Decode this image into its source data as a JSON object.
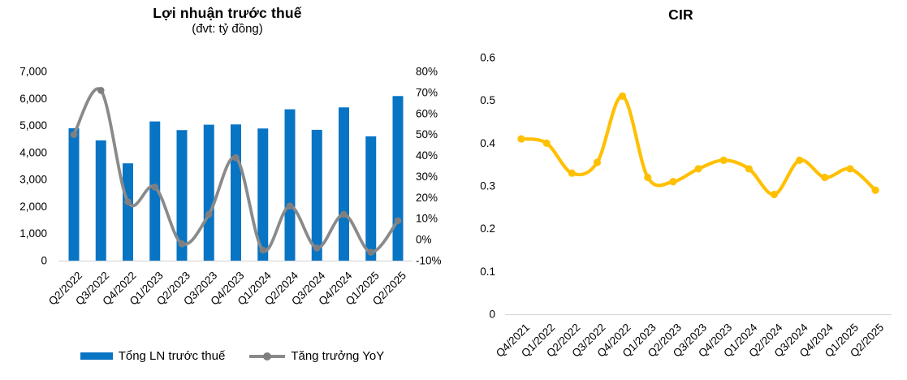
{
  "page": {
    "background": "#ffffff"
  },
  "chart_data": [
    {
      "type": "combo-bar-line",
      "title": "Lợi nhuận trước thuế",
      "subtitle": "(đvt: tỷ đồng)",
      "categories": [
        "Q2/2022",
        "Q3/2022",
        "Q4/2022",
        "Q1/2023",
        "Q2/2023",
        "Q3/2023",
        "Q4/2023",
        "Q1/2024",
        "Q2/2024",
        "Q3/2024",
        "Q4/2024",
        "Q1/2025",
        "Q2/2025"
      ],
      "series": [
        {
          "name": "Tổng LN trước thuế",
          "renderer": "bar",
          "axis": "left",
          "color": "#0874C4",
          "values": [
            4900,
            4450,
            3600,
            5150,
            4830,
            5030,
            5040,
            4890,
            5600,
            4840,
            5670,
            4600,
            6090
          ]
        },
        {
          "name": "Tăng trưởng YoY",
          "renderer": "line",
          "axis": "right",
          "color": "#8A8A8A",
          "marker_color": "#7F7F7F",
          "values_pct": [
            50,
            71,
            18,
            25,
            -2,
            12,
            39,
            -5,
            16,
            -4,
            12,
            -6,
            9
          ]
        }
      ],
      "left_axis": {
        "label_unit": "tỷ đồng",
        "min": 0,
        "max": 7000,
        "step": 1000,
        "ticks": [
          "7,000",
          "6,000",
          "5,000",
          "4,000",
          "3,000",
          "2,000",
          "1,000",
          "0"
        ]
      },
      "right_axis": {
        "label_unit": "%",
        "min": -10,
        "max": 80,
        "step": 10,
        "ticks": [
          "80%",
          "70%",
          "60%",
          "50%",
          "40%",
          "30%",
          "20%",
          "10%",
          "0%",
          "-10%"
        ]
      },
      "grid": "off",
      "legend_position": "bottom",
      "baseline_color": "#D9D9D9"
    },
    {
      "type": "line",
      "title": "CIR",
      "categories": [
        "Q4/2021",
        "Q1/2022",
        "Q2/2022",
        "Q3/2022",
        "Q4/2022",
        "Q1/2023",
        "Q2/2023",
        "Q3/2023",
        "Q4/2023",
        "Q1/2024",
        "Q2/2024",
        "Q3/2024",
        "Q4/2024",
        "Q1/2025",
        "Q2/2025"
      ],
      "series": [
        {
          "name": "CIR",
          "renderer": "line",
          "color": "#FFC000",
          "marker_color": "#FFC000",
          "values": [
            0.41,
            0.4,
            0.33,
            0.355,
            0.51,
            0.32,
            0.31,
            0.34,
            0.36,
            0.34,
            0.28,
            0.36,
            0.32,
            0.34,
            0.29
          ]
        }
      ],
      "y_axis": {
        "min": 0,
        "max": 0.6,
        "step": 0.1,
        "ticks": [
          "0.6",
          "0.5",
          "0.4",
          "0.3",
          "0.2",
          "0.1",
          "0"
        ]
      },
      "grid": "off",
      "legend_position": "none",
      "baseline_color": "#D9D9D9"
    }
  ]
}
